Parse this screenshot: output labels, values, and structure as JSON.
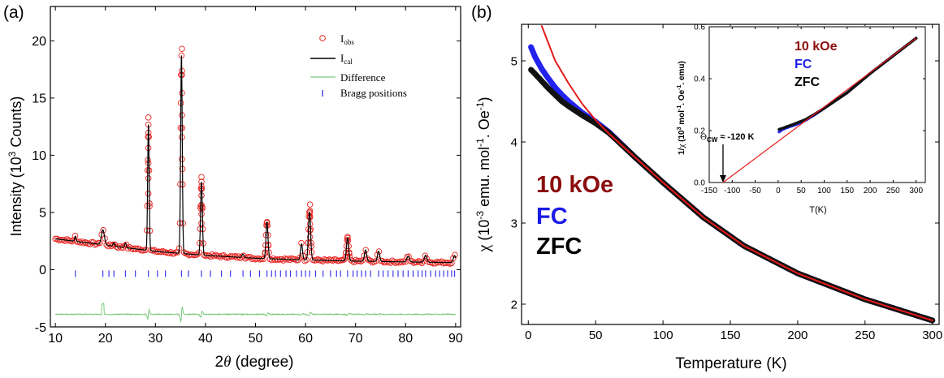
{
  "chart_data": [
    {
      "type": "scatter",
      "panel_label": "(a)",
      "xlabel_sym": "2",
      "xlabel_theta": "θ",
      "xlabel_rest": " (degree)",
      "ylabel": "Intensity (10",
      "ylabel_exp": "3",
      "ylabel_rest": " Counts)",
      "xlim": [
        9,
        91
      ],
      "ylim": [
        -5,
        23
      ],
      "xticks": [
        10,
        20,
        30,
        40,
        50,
        60,
        70,
        80,
        90
      ],
      "yticks": [
        -5,
        0,
        5,
        10,
        15,
        20
      ],
      "legend_position": "top-right",
      "legend": [
        {
          "label": "I",
          "sub": "obs",
          "style": "circle",
          "color": "#e8231f"
        },
        {
          "label": "I",
          "sub": "cal",
          "style": "line",
          "color": "#000000"
        },
        {
          "label": "Difference",
          "style": "line",
          "color": "#7ac97a"
        },
        {
          "label": "Bragg positions",
          "style": "tick",
          "color": "#2a2ae8"
        }
      ],
      "background": [
        [
          10,
          2.7
        ],
        [
          20,
          2.15
        ],
        [
          30,
          1.6
        ],
        [
          40,
          1.25
        ],
        [
          50,
          1.0
        ],
        [
          60,
          0.85
        ],
        [
          70,
          0.75
        ],
        [
          80,
          0.68
        ],
        [
          90,
          0.62
        ]
      ],
      "peaks": [
        {
          "x": 14.0,
          "h": 0.45,
          "w": 0.15
        },
        {
          "x": 19.5,
          "h": 1.3,
          "w": 0.3
        },
        {
          "x": 21.7,
          "h": 0.3,
          "w": 0.15
        },
        {
          "x": 24.0,
          "h": 0.4,
          "w": 0.15
        },
        {
          "x": 28.6,
          "h": 11.0,
          "w": 0.15
        },
        {
          "x": 35.2,
          "h": 17.3,
          "w": 0.16
        },
        {
          "x": 39.2,
          "h": 6.4,
          "w": 0.18
        },
        {
          "x": 47.5,
          "h": 0.3,
          "w": 0.2
        },
        {
          "x": 52.3,
          "h": 3.2,
          "w": 0.2
        },
        {
          "x": 59.2,
          "h": 1.4,
          "w": 0.2
        },
        {
          "x": 60.8,
          "h": 4.2,
          "w": 0.22
        },
        {
          "x": 68.4,
          "h": 2.0,
          "w": 0.22
        },
        {
          "x": 72.0,
          "h": 1.0,
          "w": 0.22
        },
        {
          "x": 74.6,
          "h": 0.9,
          "w": 0.22
        },
        {
          "x": 80.5,
          "h": 0.5,
          "w": 0.25
        },
        {
          "x": 84.0,
          "h": 0.6,
          "w": 0.25
        },
        {
          "x": 89.8,
          "h": 0.6,
          "w": 0.25
        }
      ],
      "obs_peak_max": [
        {
          "x": 28.6,
          "y": 13.3
        },
        {
          "x": 35.3,
          "y": 19.3
        },
        {
          "x": 39.2,
          "y": 8.1
        },
        {
          "x": 60.9,
          "y": 5.7
        }
      ],
      "difference_baseline": -3.9,
      "bragg_y": -0.35,
      "bragg_positions": [
        14.0,
        19.5,
        20.7,
        21.7,
        24.0,
        26.0,
        28.6,
        30.4,
        32.0,
        35.2,
        36.6,
        39.2,
        41.0,
        43.2,
        45.0,
        47.5,
        49.0,
        50.8,
        52.3,
        53.2,
        54.0,
        55.0,
        56.1,
        57.0,
        58.2,
        59.2,
        60.0,
        60.8,
        62.0,
        63.5,
        65.0,
        66.2,
        67.0,
        68.4,
        69.5,
        70.3,
        71.2,
        72.0,
        73.0,
        74.6,
        75.5,
        76.5,
        77.5,
        78.5,
        79.5,
        80.5,
        81.5,
        82.5,
        83.3,
        84.0,
        85.0,
        86.0,
        86.8,
        87.6,
        88.4,
        89.2,
        89.8
      ]
    },
    {
      "type": "line",
      "panel_label": "(b)",
      "xlabel": "Temperature (K)",
      "ylabel_chi": "χ",
      "ylabel_a": " (10",
      "ylabel_a_exp": "-3",
      "ylabel_b": " emu. mol",
      "ylabel_b_exp": "-1",
      "ylabel_c": ". Oe",
      "ylabel_c_exp": "-1",
      "ylabel_d": ")",
      "xlim": [
        -5,
        305
      ],
      "ylim": [
        1.75,
        5.45
      ],
      "xticks": [
        0,
        50,
        100,
        150,
        200,
        250,
        300
      ],
      "yticks": [
        2,
        3,
        4,
        5
      ],
      "annotations": [
        {
          "text": "10 kOe",
          "color": "#8b0d0d"
        },
        {
          "text": "FC",
          "color": "#1a1ae6"
        },
        {
          "text": "ZFC",
          "color": "#000000"
        }
      ],
      "series": [
        {
          "name": "FC",
          "color": "#2323ee",
          "x": [
            2,
            5,
            10,
            15,
            20,
            25,
            30,
            40,
            50,
            60,
            80,
            100,
            130,
            160,
            200,
            250,
            300
          ],
          "y": [
            5.17,
            5.05,
            4.9,
            4.78,
            4.67,
            4.58,
            4.5,
            4.36,
            4.25,
            4.12,
            3.8,
            3.5,
            3.07,
            2.72,
            2.38,
            2.06,
            1.8
          ]
        },
        {
          "name": "ZFC",
          "color": "#111111",
          "x": [
            2,
            5,
            10,
            15,
            20,
            25,
            30,
            40,
            50,
            60,
            80,
            100,
            130,
            160,
            200,
            250,
            300
          ],
          "y": [
            4.89,
            4.84,
            4.75,
            4.66,
            4.58,
            4.5,
            4.44,
            4.33,
            4.23,
            4.11,
            3.8,
            3.5,
            3.07,
            2.72,
            2.38,
            2.06,
            1.8
          ]
        },
        {
          "name": "fit",
          "color": "#e61a1a",
          "x": [
            10,
            20,
            30,
            40,
            50,
            60,
            80,
            100,
            130,
            160,
            200,
            250,
            300
          ],
          "y": [
            5.43,
            5.0,
            4.72,
            4.47,
            4.27,
            4.1,
            3.8,
            3.5,
            3.07,
            2.72,
            2.38,
            2.06,
            1.8
          ]
        }
      ]
    },
    {
      "type": "line",
      "panel_label": "inset",
      "xlabel": "T(K)",
      "ylabel_pre": "1/",
      "ylabel_chi": "χ",
      "ylabel_a": " (10",
      "ylabel_a_exp": "3",
      "ylabel_b": " mol",
      "ylabel_b_exp": "-1",
      "ylabel_c": ". Oe",
      "ylabel_c_exp": "-1",
      "ylabel_d": ". emu)",
      "xlim": [
        -150,
        320
      ],
      "ylim": [
        0,
        0.6
      ],
      "xticks": [
        -150,
        -100,
        -50,
        0,
        50,
        100,
        150,
        200,
        250,
        300
      ],
      "yticks": [
        0.0,
        0.2,
        0.4,
        0.6
      ],
      "ytick_labels": [
        "0.0",
        "0.2",
        "0.4",
        "0.6"
      ],
      "annotations": [
        {
          "text": "10 kOe",
          "color": "#8b0d0d"
        },
        {
          "text": "FC",
          "color": "#1a1ae6"
        },
        {
          "text": "ZFC",
          "color": "#000000"
        }
      ],
      "theta_label": "Θ",
      "theta_sub": "CW",
      "theta_text": " ≈ -120 K",
      "theta_x": -120,
      "series": [
        {
          "name": "FC",
          "color": "#2323ee",
          "x": [
            2,
            10,
            20,
            30,
            40,
            50,
            60,
            80,
            100,
            150,
            200,
            250,
            300
          ],
          "y": [
            0.195,
            0.205,
            0.212,
            0.218,
            0.224,
            0.232,
            0.24,
            0.262,
            0.286,
            0.346,
            0.42,
            0.488,
            0.556
          ]
        },
        {
          "name": "ZFC",
          "color": "#111111",
          "x": [
            2,
            10,
            20,
            30,
            40,
            50,
            60,
            80,
            100,
            150,
            200,
            250,
            300
          ],
          "y": [
            0.205,
            0.209,
            0.216,
            0.222,
            0.229,
            0.236,
            0.243,
            0.264,
            0.286,
            0.346,
            0.42,
            0.488,
            0.556
          ]
        },
        {
          "name": "fit",
          "color": "#e61a1a",
          "x": [
            -120,
            300
          ],
          "y": [
            0,
            0.556
          ]
        }
      ]
    }
  ]
}
